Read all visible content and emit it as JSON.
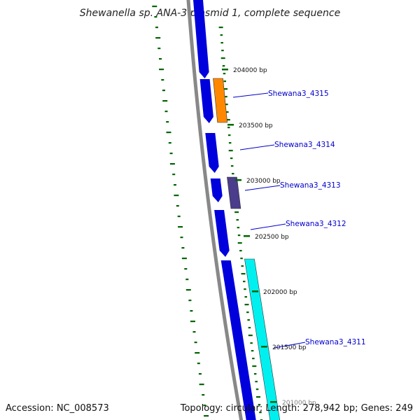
{
  "title": "Shewanella sp. ANA-3 plasmid 1, complete sequence",
  "footer": {
    "accession": "Accession: NC_008573",
    "summary": "Topology: circular; Length: 278,942 bp; Genes: 249"
  },
  "colors": {
    "backbone": "#888888",
    "cds": "#0000dd",
    "highlight_orange": "#ff8800",
    "highlight_purple": "#4b3c8c",
    "highlight_cyan": "#00f0f0",
    "tick": "#006600",
    "label": "#0000cc"
  },
  "ticks": [
    {
      "label": "204000 bp"
    },
    {
      "label": "203500 bp"
    },
    {
      "label": "203000 bp"
    },
    {
      "label": "202500 bp"
    },
    {
      "label": "202000 bp"
    },
    {
      "label": "201500 bp"
    },
    {
      "label": "201000 bp"
    }
  ],
  "genes": [
    {
      "name": "Shewana3_4315"
    },
    {
      "name": "Shewana3_4314"
    },
    {
      "name": "Shewana3_4313"
    },
    {
      "name": "Shewana3_4312"
    },
    {
      "name": "Shewana3_4311"
    }
  ]
}
